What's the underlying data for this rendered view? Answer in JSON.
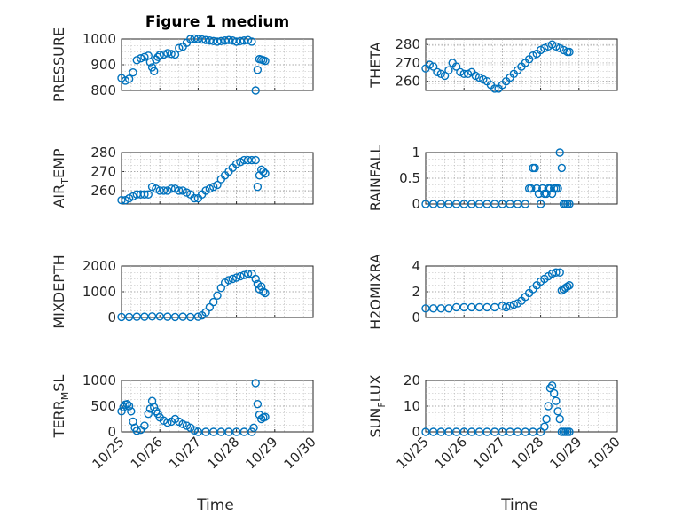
{
  "title": "Figure 1 medium",
  "xlabel": "Time",
  "marker_color": "#0072BD",
  "chart_data": [
    {
      "type": "scatter",
      "ylabel": "PRESSURE",
      "ylim": [
        800,
        1000
      ],
      "yticks": [
        "1000",
        "900",
        "800"
      ],
      "ytickvals": [
        1000,
        900,
        800
      ],
      "x": [
        0,
        0.1,
        0.2,
        0.3,
        0.4,
        0.5,
        0.6,
        0.7,
        0.75,
        0.8,
        0.85,
        0.9,
        0.95,
        1.0,
        1.1,
        1.2,
        1.3,
        1.4,
        1.5,
        1.6,
        1.7,
        1.8,
        1.9,
        2.0,
        2.1,
        2.2,
        2.3,
        2.4,
        2.5,
        2.6,
        2.7,
        2.8,
        2.9,
        3.0,
        3.1,
        3.2,
        3.3,
        3.4,
        3.5,
        3.55,
        3.6,
        3.65,
        3.7,
        3.75
      ],
      "y": [
        848,
        838,
        845,
        870,
        918,
        925,
        930,
        935,
        910,
        890,
        875,
        920,
        930,
        938,
        940,
        945,
        942,
        940,
        965,
        970,
        985,
        1000,
        1002,
        1000,
        998,
        996,
        994,
        992,
        990,
        992,
        994,
        996,
        994,
        990,
        992,
        994,
        996,
        990,
        800,
        880,
        922,
        920,
        918,
        915
      ]
    },
    {
      "type": "scatter",
      "ylabel": "THETA",
      "ylim": [
        255,
        283
      ],
      "yticks": [
        "280",
        "270",
        "260"
      ],
      "ytickvals": [
        280,
        270,
        260
      ],
      "x": [
        0,
        0.1,
        0.2,
        0.3,
        0.4,
        0.5,
        0.6,
        0.7,
        0.8,
        0.9,
        1.0,
        1.1,
        1.2,
        1.3,
        1.4,
        1.5,
        1.6,
        1.7,
        1.8,
        1.9,
        2.0,
        2.1,
        2.2,
        2.3,
        2.4,
        2.5,
        2.6,
        2.7,
        2.8,
        2.9,
        3.0,
        3.1,
        3.2,
        3.3,
        3.4,
        3.5,
        3.6,
        3.7,
        3.75
      ],
      "y": [
        267,
        269,
        268,
        265,
        264,
        263,
        266,
        270,
        268,
        265,
        264,
        264,
        265,
        263,
        262,
        261,
        260,
        258,
        256,
        256,
        258,
        260,
        262,
        264,
        266,
        268,
        270,
        272,
        274,
        275,
        277,
        278,
        279,
        280,
        279,
        278,
        277,
        276,
        276
      ]
    },
    {
      "type": "scatter",
      "ylabel": "AIR_TEMP",
      "ylim": [
        253,
        280
      ],
      "yticks": [
        "280",
        "270",
        "260"
      ],
      "ytickvals": [
        280,
        270,
        260
      ],
      "x": [
        0,
        0.1,
        0.2,
        0.3,
        0.4,
        0.5,
        0.6,
        0.7,
        0.8,
        0.9,
        1.0,
        1.1,
        1.2,
        1.3,
        1.4,
        1.5,
        1.6,
        1.7,
        1.8,
        1.9,
        2.0,
        2.1,
        2.2,
        2.3,
        2.4,
        2.5,
        2.6,
        2.7,
        2.8,
        2.9,
        3.0,
        3.1,
        3.2,
        3.3,
        3.4,
        3.5,
        3.55,
        3.6,
        3.65,
        3.7,
        3.75
      ],
      "y": [
        255,
        255,
        256,
        257,
        258,
        258,
        258,
        258,
        262,
        261,
        260,
        260,
        260,
        261,
        261,
        260,
        260,
        259,
        258,
        256,
        256,
        258,
        260,
        261,
        262,
        263,
        266,
        268,
        270,
        272,
        274,
        275,
        276,
        276,
        276,
        276,
        262,
        268,
        271,
        270,
        269
      ]
    },
    {
      "type": "scatter",
      "ylabel": "RAINFALL",
      "ylim": [
        0,
        1
      ],
      "yticks": [
        "1",
        "0.5",
        "0"
      ],
      "ytickvals": [
        1,
        0.5,
        0
      ],
      "x": [
        0,
        0.2,
        0.4,
        0.6,
        0.8,
        1.0,
        1.2,
        1.4,
        1.6,
        1.8,
        2.0,
        2.2,
        2.4,
        2.6,
        2.7,
        2.75,
        2.8,
        2.85,
        2.9,
        2.95,
        3.0,
        3.05,
        3.1,
        3.15,
        3.2,
        3.25,
        3.3,
        3.35,
        3.4,
        3.45,
        3.5,
        3.55,
        3.6,
        3.65,
        3.7,
        3.75
      ],
      "y": [
        0,
        0,
        0,
        0,
        0,
        0,
        0,
        0,
        0,
        0,
        0,
        0,
        0,
        0,
        0.3,
        0.3,
        0.7,
        0.7,
        0.3,
        0.2,
        0,
        0.3,
        0.2,
        0.2,
        0.3,
        0.3,
        0.2,
        0.3,
        0.3,
        0.3,
        1.0,
        0.7,
        0,
        0,
        0,
        0
      ]
    },
    {
      "type": "scatter",
      "ylabel": "MIXDEPTH",
      "ylim": [
        0,
        2000
      ],
      "yticks": [
        "2000",
        "1000",
        "0"
      ],
      "ytickvals": [
        2000,
        1000,
        0
      ],
      "x": [
        0,
        0.2,
        0.4,
        0.6,
        0.8,
        1.0,
        1.2,
        1.4,
        1.6,
        1.8,
        2.0,
        2.1,
        2.2,
        2.3,
        2.4,
        2.5,
        2.6,
        2.7,
        2.8,
        2.9,
        3.0,
        3.1,
        3.2,
        3.3,
        3.4,
        3.5,
        3.55,
        3.6,
        3.65,
        3.7,
        3.75
      ],
      "y": [
        20,
        20,
        30,
        30,
        40,
        40,
        30,
        20,
        30,
        20,
        30,
        80,
        200,
        400,
        600,
        850,
        1150,
        1350,
        1450,
        1500,
        1550,
        1600,
        1650,
        1700,
        1700,
        1500,
        1300,
        1100,
        1200,
        1000,
        950
      ]
    },
    {
      "type": "scatter",
      "ylabel": "H2OMIXRA",
      "ylim": [
        0,
        4
      ],
      "yticks": [
        "4",
        "2",
        "0"
      ],
      "ytickvals": [
        4,
        2,
        0
      ],
      "x": [
        0,
        0.2,
        0.4,
        0.6,
        0.8,
        1.0,
        1.2,
        1.4,
        1.6,
        1.8,
        2.0,
        2.1,
        2.2,
        2.3,
        2.4,
        2.5,
        2.6,
        2.7,
        2.8,
        2.9,
        3.0,
        3.1,
        3.2,
        3.3,
        3.4,
        3.5,
        3.55,
        3.6,
        3.65,
        3.7,
        3.75
      ],
      "y": [
        0.7,
        0.7,
        0.7,
        0.7,
        0.8,
        0.8,
        0.8,
        0.8,
        0.8,
        0.8,
        0.9,
        0.8,
        0.9,
        1.0,
        1.1,
        1.3,
        1.6,
        1.9,
        2.2,
        2.5,
        2.8,
        3.0,
        3.2,
        3.4,
        3.5,
        3.5,
        2.1,
        2.2,
        2.3,
        2.4,
        2.5
      ]
    },
    {
      "type": "scatter",
      "ylabel": "TERR_MSL",
      "ylim": [
        0,
        1000
      ],
      "yticks": [
        "1000",
        "500",
        "0"
      ],
      "ytickvals": [
        1000,
        500,
        0
      ],
      "x": [
        0,
        0.05,
        0.1,
        0.15,
        0.2,
        0.25,
        0.3,
        0.35,
        0.4,
        0.5,
        0.6,
        0.7,
        0.75,
        0.8,
        0.85,
        0.9,
        0.95,
        1.0,
        1.1,
        1.2,
        1.3,
        1.4,
        1.5,
        1.6,
        1.7,
        1.8,
        1.9,
        2.0,
        2.2,
        2.4,
        2.6,
        2.8,
        3.0,
        3.2,
        3.4,
        3.45,
        3.5,
        3.55,
        3.6,
        3.65,
        3.7,
        3.75
      ],
      "y": [
        400,
        480,
        530,
        540,
        500,
        400,
        200,
        80,
        20,
        40,
        120,
        350,
        450,
        600,
        480,
        400,
        350,
        280,
        220,
        180,
        200,
        250,
        200,
        150,
        120,
        80,
        30,
        0,
        0,
        0,
        0,
        0,
        0,
        0,
        0,
        80,
        950,
        540,
        330,
        250,
        280,
        290
      ]
    },
    {
      "type": "scatter",
      "ylabel": "SUN_FLUX",
      "ylim": [
        0,
        20
      ],
      "yticks": [
        "20",
        "10",
        "0"
      ],
      "ytickvals": [
        20,
        10,
        0
      ],
      "x": [
        0,
        0.2,
        0.4,
        0.6,
        0.8,
        1.0,
        1.2,
        1.4,
        1.6,
        1.8,
        2.0,
        2.2,
        2.4,
        2.6,
        2.8,
        3.0,
        3.1,
        3.15,
        3.2,
        3.25,
        3.3,
        3.35,
        3.4,
        3.45,
        3.5,
        3.55,
        3.6,
        3.65,
        3.7,
        3.75
      ],
      "y": [
        0,
        0,
        0,
        0,
        0,
        0,
        0,
        0,
        0,
        0,
        0,
        0,
        0,
        0,
        0,
        0,
        2,
        5,
        10,
        17,
        18,
        15,
        12,
        8,
        5,
        0,
        0,
        0,
        0,
        0
      ]
    }
  ],
  "xticks": [
    "10/25",
    "10/26",
    "10/27",
    "10/28",
    "10/29",
    "10/30"
  ]
}
